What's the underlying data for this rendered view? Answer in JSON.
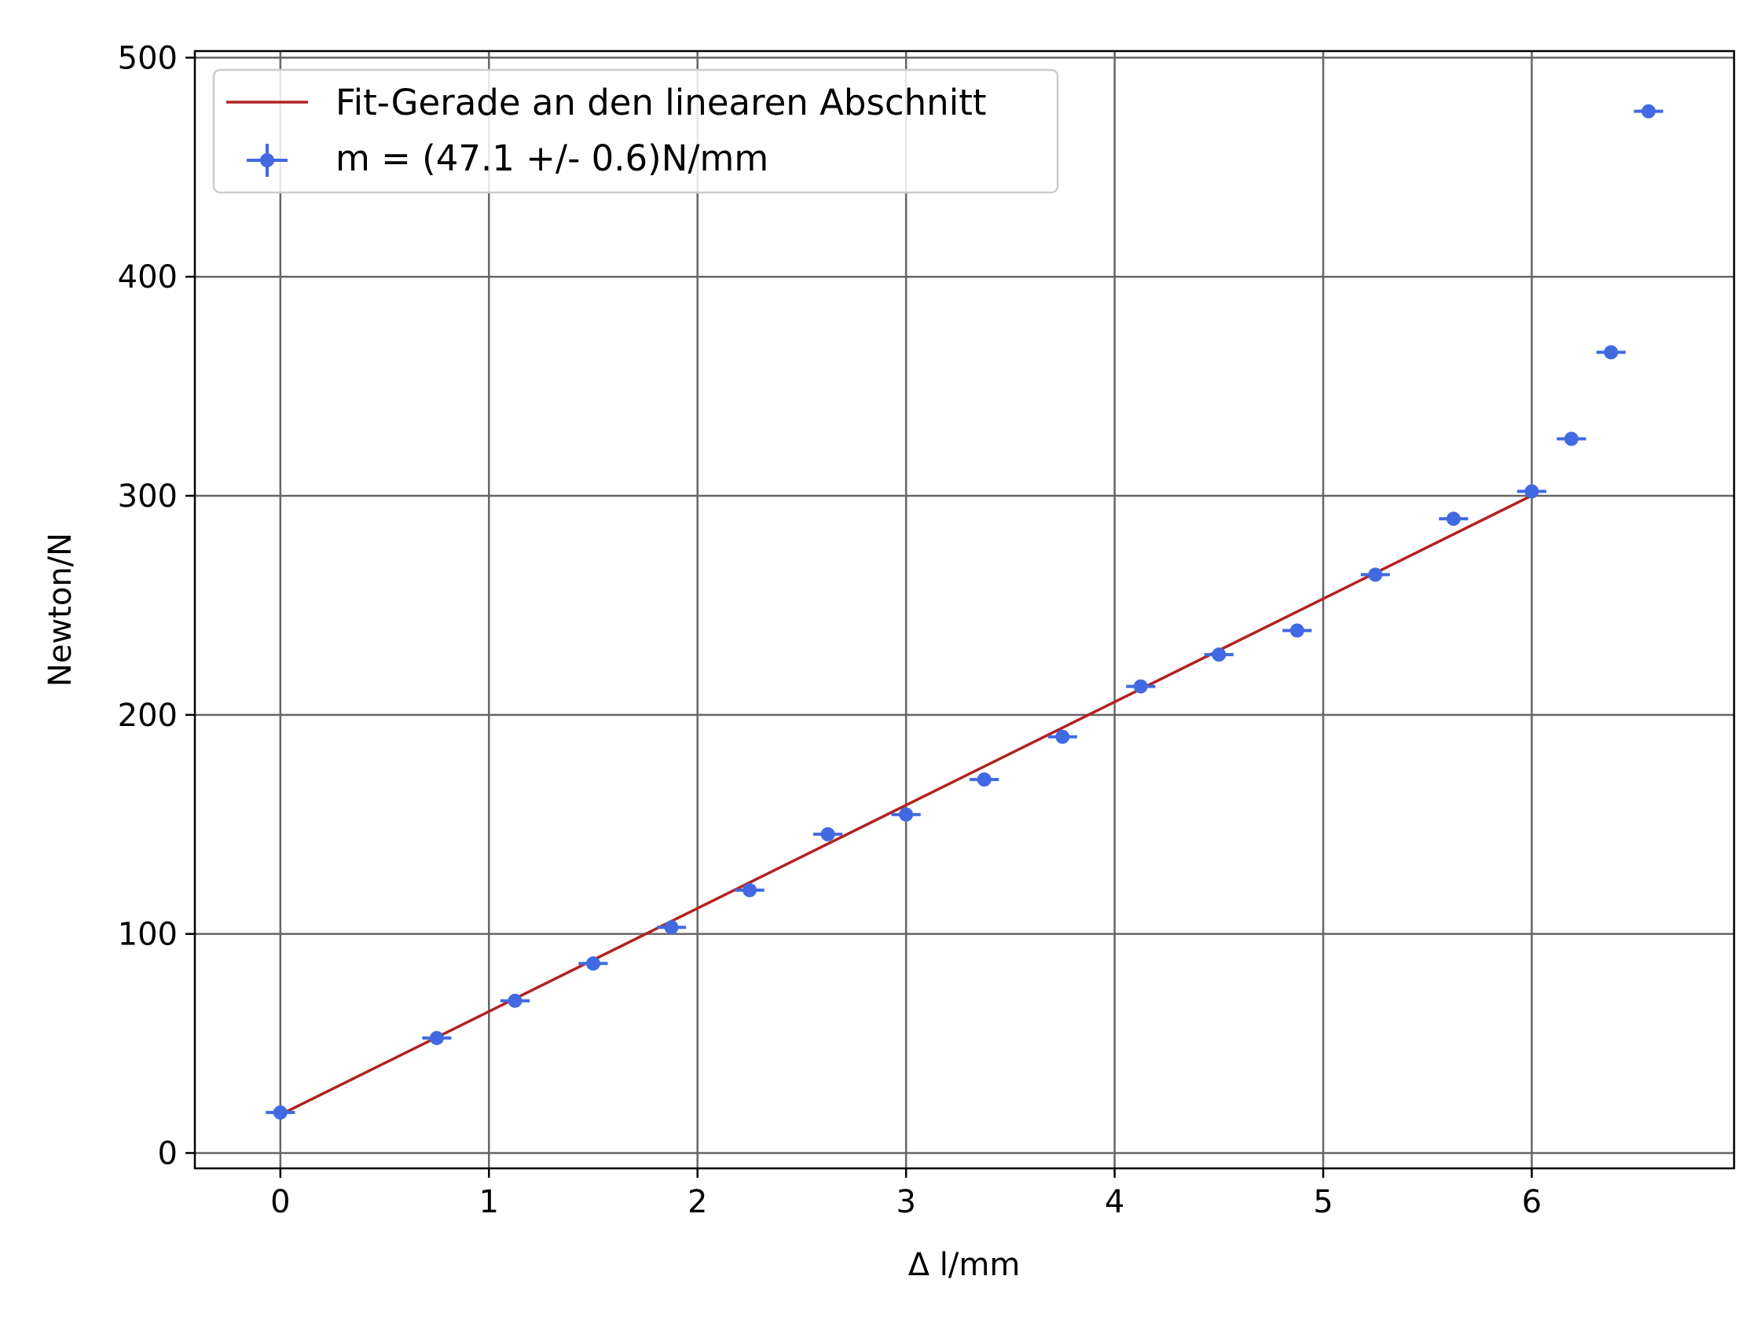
{
  "chart_data": {
    "type": "scatter",
    "xlabel": "Δ l/mm",
    "ylabel": "Newton/N",
    "xlim": [
      -0.41,
      6.97
    ],
    "ylim": [
      -7,
      503
    ],
    "xticks": [
      "0",
      "1",
      "2",
      "3",
      "4",
      "5",
      "6"
    ],
    "yticks": [
      "0",
      "100",
      "200",
      "300",
      "400",
      "500"
    ],
    "grid": true,
    "legend_position": "top-left",
    "series": [
      {
        "name": "m = (47.1 +/- 0.6)N/mm",
        "kind": "errorbar",
        "color": "#4169e1",
        "x": [
          0,
          0.75,
          1.125,
          1.5,
          1.875,
          2.25,
          2.625,
          3.0,
          3.375,
          3.75,
          4.125,
          4.5,
          4.875,
          5.25,
          5.625,
          6.0,
          6.19,
          6.38,
          6.56
        ],
        "y": [
          18.5,
          52.5,
          69.5,
          86.5,
          103,
          120,
          145.5,
          154.5,
          170.5,
          190,
          213,
          227.5,
          238.5,
          264,
          289.5,
          302,
          326,
          365.5,
          475.5
        ],
        "x_error": [
          0.07,
          0.07,
          0.07,
          0.07,
          0.07,
          0.07,
          0.07,
          0.07,
          0.07,
          0.07,
          0.07,
          0.07,
          0.07,
          0.07,
          0.07,
          0.07,
          0.07,
          0.07,
          0.07
        ],
        "y_error": [
          1.5,
          1.5,
          1.5,
          1.5,
          1.5,
          1.5,
          1.5,
          1.5,
          1.5,
          1.5,
          1.5,
          1.5,
          1.5,
          1.5,
          1.5,
          1.5,
          1.5,
          1.5,
          1.5
        ]
      },
      {
        "name": "Fit-Gerade an den linearen Abschnitt",
        "kind": "line",
        "color": "#b22222",
        "x": [
          0,
          6.0
        ],
        "y": [
          17.5,
          300.1
        ]
      }
    ]
  }
}
